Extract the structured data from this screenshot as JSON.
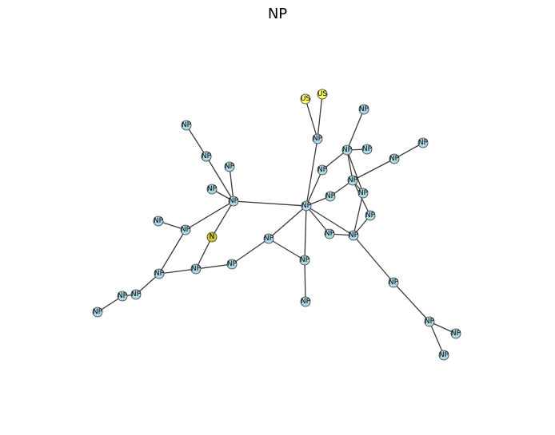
{
  "title": "NP",
  "colors": {
    "np": "#add8e6",
    "us": "#ffff66",
    "n": "#cccc33",
    "edge": "#3a3a3a"
  },
  "nodes": [
    {
      "id": 0,
      "label": "NP",
      "kind": "np"
    },
    {
      "id": 1,
      "label": "NP",
      "kind": "np"
    },
    {
      "id": 2,
      "label": "NP",
      "kind": "np"
    },
    {
      "id": 3,
      "label": "NP",
      "kind": "np"
    },
    {
      "id": 4,
      "label": "NP",
      "kind": "np"
    },
    {
      "id": 5,
      "label": "NP",
      "kind": "np"
    },
    {
      "id": 6,
      "label": "NP",
      "kind": "np"
    },
    {
      "id": 7,
      "label": "N",
      "kind": "n"
    },
    {
      "id": 8,
      "label": "NP",
      "kind": "np"
    },
    {
      "id": 9,
      "label": "NP",
      "kind": "np"
    },
    {
      "id": 10,
      "label": "NP",
      "kind": "np"
    },
    {
      "id": 11,
      "label": "NP",
      "kind": "np"
    },
    {
      "id": 12,
      "label": "NP",
      "kind": "np"
    },
    {
      "id": 13,
      "label": "NP",
      "kind": "np"
    },
    {
      "id": 14,
      "label": "NP",
      "kind": "np"
    },
    {
      "id": 15,
      "label": "NP",
      "kind": "np"
    },
    {
      "id": 16,
      "label": "US",
      "kind": "us"
    },
    {
      "id": 17,
      "label": "US",
      "kind": "us"
    },
    {
      "id": 18,
      "label": "NP",
      "kind": "np"
    },
    {
      "id": 19,
      "label": "NP",
      "kind": "np"
    },
    {
      "id": 20,
      "label": "NP",
      "kind": "np"
    },
    {
      "id": 21,
      "label": "NP",
      "kind": "np"
    },
    {
      "id": 22,
      "label": "NP",
      "kind": "np"
    },
    {
      "id": 23,
      "label": "NP",
      "kind": "np"
    },
    {
      "id": 24,
      "label": "NP",
      "kind": "np"
    },
    {
      "id": 25,
      "label": "NP",
      "kind": "np"
    },
    {
      "id": 26,
      "label": "NP",
      "kind": "np"
    },
    {
      "id": 27,
      "label": "NP",
      "kind": "np"
    },
    {
      "id": 28,
      "label": "NP",
      "kind": "np"
    },
    {
      "id": 29,
      "label": "NP",
      "kind": "np"
    },
    {
      "id": 30,
      "label": "NP",
      "kind": "np"
    },
    {
      "id": 31,
      "label": "NP",
      "kind": "np"
    },
    {
      "id": 32,
      "label": "NP",
      "kind": "np"
    },
    {
      "id": 33,
      "label": "NP",
      "kind": "np"
    },
    {
      "id": 34,
      "label": "NP",
      "kind": "np"
    },
    {
      "id": 35,
      "label": "NP",
      "kind": "np"
    },
    {
      "id": 36,
      "label": "NP",
      "kind": "np"
    }
  ],
  "edges": [
    [
      0,
      1
    ],
    [
      1,
      2
    ],
    [
      2,
      3
    ],
    [
      2,
      4
    ],
    [
      2,
      5
    ],
    [
      5,
      6
    ],
    [
      6,
      8
    ],
    [
      2,
      7
    ],
    [
      7,
      9
    ],
    [
      9,
      11
    ],
    [
      11,
      12
    ],
    [
      12,
      2
    ],
    [
      11,
      10
    ],
    [
      8,
      9
    ],
    [
      8,
      13
    ],
    [
      8,
      14
    ],
    [
      14,
      15
    ],
    [
      2,
      18
    ],
    [
      18,
      16
    ],
    [
      16,
      17
    ],
    [
      18,
      12
    ],
    [
      18,
      22
    ],
    [
      12,
      19
    ],
    [
      12,
      20
    ],
    [
      19,
      22
    ],
    [
      19,
      21
    ],
    [
      19,
      23
    ],
    [
      22,
      23
    ],
    [
      22,
      24
    ],
    [
      22,
      25
    ],
    [
      22,
      26
    ],
    [
      24,
      12
    ],
    [
      26,
      27
    ],
    [
      12,
      28
    ],
    [
      28,
      29
    ],
    [
      12,
      30
    ],
    [
      30,
      33
    ],
    [
      12,
      33
    ],
    [
      33,
      23
    ],
    [
      33,
      31
    ],
    [
      33,
      34
    ],
    [
      34,
      35
    ],
    [
      34,
      36
    ]
  ]
}
